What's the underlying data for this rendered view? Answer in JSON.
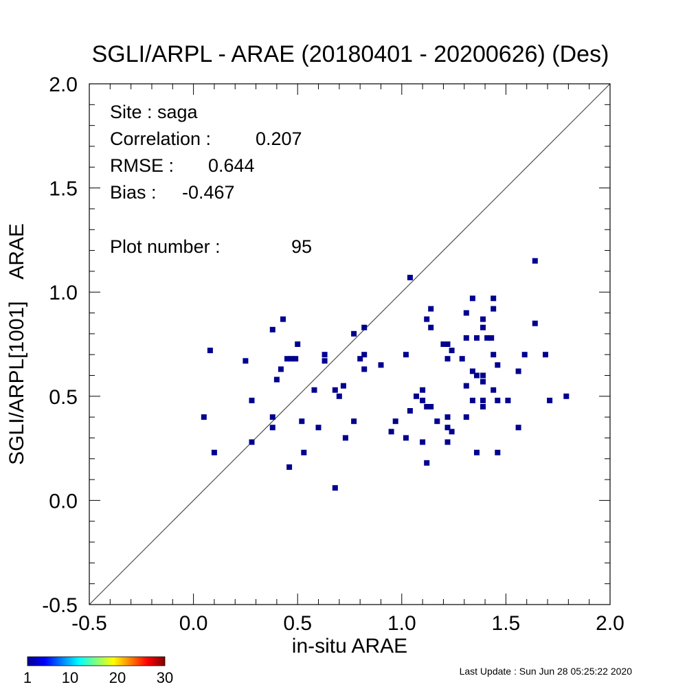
{
  "chart_data": {
    "type": "scatter",
    "title": "SGLI/ARPL - ARAE (20180401 - 20200626) (Des)",
    "xlabel": "in-situ ARAE",
    "ylabel": "SGLI/ARPL[1001]    ARAE",
    "xlim": [
      -0.5,
      2.0
    ],
    "ylim": [
      -0.5,
      2.0
    ],
    "x_ticks": [
      "-0.5",
      "0.0",
      "0.5",
      "1.0",
      "1.5",
      "2.0"
    ],
    "y_ticks": [
      "-0.5",
      "0.0",
      "0.5",
      "1.0",
      "1.5",
      "2.0"
    ],
    "one_to_one_line": true,
    "grid": false,
    "marker_color": "#00008f",
    "stats": {
      "site_label": "Site : saga",
      "correlation_label": "Correlation :",
      "correlation_value": "0.207",
      "rmse_label": "RMSE :",
      "rmse_value": "0.644",
      "bias_label": "Bias :",
      "bias_value": "-0.467",
      "plot_number_label": "Plot number :",
      "plot_number_value": "95"
    },
    "colorbar": {
      "ticks": [
        "1",
        "10",
        "20",
        "30"
      ],
      "range": [
        1,
        30
      ]
    },
    "points": [
      [
        0.05,
        0.4
      ],
      [
        0.08,
        0.72
      ],
      [
        0.1,
        0.23
      ],
      [
        0.25,
        0.67
      ],
      [
        0.28,
        0.28
      ],
      [
        0.28,
        0.48
      ],
      [
        0.38,
        0.82
      ],
      [
        0.38,
        0.4
      ],
      [
        0.38,
        0.35
      ],
      [
        0.4,
        0.58
      ],
      [
        0.42,
        0.63
      ],
      [
        0.43,
        0.87
      ],
      [
        0.45,
        0.68
      ],
      [
        0.47,
        0.68
      ],
      [
        0.49,
        0.68
      ],
      [
        0.46,
        0.16
      ],
      [
        0.5,
        0.75
      ],
      [
        0.52,
        0.38
      ],
      [
        0.53,
        0.23
      ],
      [
        0.58,
        0.53
      ],
      [
        0.6,
        0.35
      ],
      [
        0.63,
        0.7
      ],
      [
        0.63,
        0.67
      ],
      [
        0.68,
        0.53
      ],
      [
        0.68,
        0.06
      ],
      [
        0.7,
        0.5
      ],
      [
        0.72,
        0.55
      ],
      [
        0.73,
        0.3
      ],
      [
        0.77,
        0.8
      ],
      [
        0.77,
        0.38
      ],
      [
        0.8,
        0.68
      ],
      [
        0.82,
        0.83
      ],
      [
        0.82,
        0.7
      ],
      [
        0.82,
        0.63
      ],
      [
        0.9,
        0.65
      ],
      [
        0.95,
        0.33
      ],
      [
        0.97,
        0.38
      ],
      [
        1.02,
        0.7
      ],
      [
        1.02,
        0.3
      ],
      [
        1.04,
        1.07
      ],
      [
        1.04,
        0.43
      ],
      [
        1.07,
        0.5
      ],
      [
        1.1,
        0.53
      ],
      [
        1.1,
        0.48
      ],
      [
        1.1,
        0.28
      ],
      [
        1.12,
        0.87
      ],
      [
        1.12,
        0.45
      ],
      [
        1.12,
        0.18
      ],
      [
        1.14,
        0.92
      ],
      [
        1.14,
        0.83
      ],
      [
        1.14,
        0.45
      ],
      [
        1.17,
        0.38
      ],
      [
        1.2,
        0.75
      ],
      [
        1.22,
        0.75
      ],
      [
        1.22,
        0.68
      ],
      [
        1.22,
        0.4
      ],
      [
        1.22,
        0.35
      ],
      [
        1.22,
        0.28
      ],
      [
        1.24,
        0.72
      ],
      [
        1.24,
        0.33
      ],
      [
        1.29,
        0.68
      ],
      [
        1.31,
        0.9
      ],
      [
        1.31,
        0.78
      ],
      [
        1.31,
        0.55
      ],
      [
        1.31,
        0.4
      ],
      [
        1.34,
        0.97
      ],
      [
        1.34,
        0.62
      ],
      [
        1.34,
        0.48
      ],
      [
        1.36,
        0.78
      ],
      [
        1.36,
        0.6
      ],
      [
        1.36,
        0.23
      ],
      [
        1.39,
        0.87
      ],
      [
        1.39,
        0.83
      ],
      [
        1.39,
        0.6
      ],
      [
        1.39,
        0.57
      ],
      [
        1.39,
        0.48
      ],
      [
        1.39,
        0.45
      ],
      [
        1.41,
        0.78
      ],
      [
        1.43,
        0.78
      ],
      [
        1.44,
        0.97
      ],
      [
        1.44,
        0.92
      ],
      [
        1.44,
        0.7
      ],
      [
        1.44,
        0.53
      ],
      [
        1.46,
        0.65
      ],
      [
        1.46,
        0.48
      ],
      [
        1.46,
        0.23
      ],
      [
        1.51,
        0.48
      ],
      [
        1.56,
        0.62
      ],
      [
        1.56,
        0.35
      ],
      [
        1.59,
        0.7
      ],
      [
        1.64,
        1.15
      ],
      [
        1.64,
        0.85
      ],
      [
        1.69,
        0.7
      ],
      [
        1.71,
        0.48
      ],
      [
        1.79,
        0.5
      ]
    ]
  },
  "footer": {
    "last_update": "Last Update : Sun Jun 28 05:25:22 2020"
  }
}
